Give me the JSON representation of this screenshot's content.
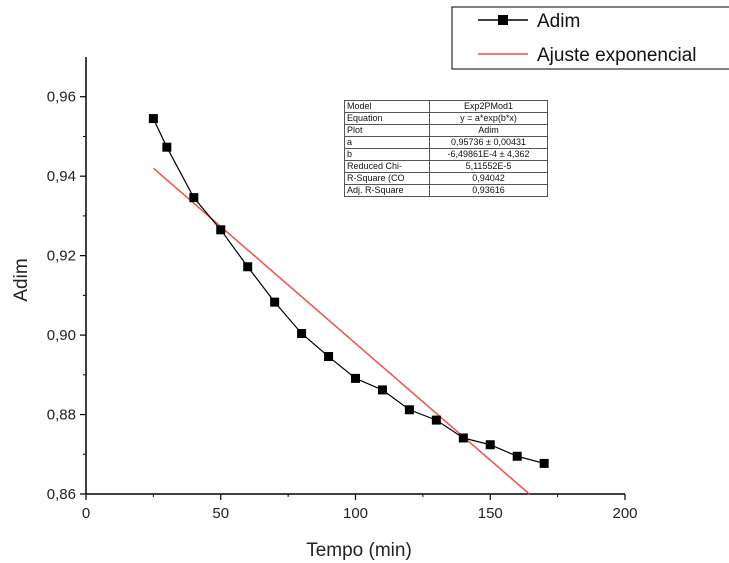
{
  "chart_data": {
    "type": "scatter",
    "xlabel": "Tempo (min)",
    "ylabel": "Adim",
    "xlim": [
      0,
      200
    ],
    "ylim": [
      0.86,
      0.97
    ],
    "x_ticks": [
      "0",
      "50",
      "100",
      "150",
      "200"
    ],
    "x_tick_values": [
      0,
      50,
      100,
      150,
      200
    ],
    "y_ticks": [
      "0,86",
      "0,88",
      "0,90",
      "0,92",
      "0,94",
      "0,96"
    ],
    "y_tick_values": [
      0.86,
      0.88,
      0.9,
      0.92,
      0.94,
      0.96
    ],
    "grid": false,
    "legend_position": "top-right",
    "series": [
      {
        "name": "Adim",
        "style": "line-with-square-markers",
        "color": "#000000",
        "x": [
          25,
          30,
          40,
          50,
          60,
          70,
          80,
          90,
          100,
          110,
          120,
          130,
          140,
          150,
          160,
          170
        ],
        "y": [
          0.9545,
          0.9473,
          0.9346,
          0.9265,
          0.9172,
          0.9083,
          0.9004,
          0.8946,
          0.8891,
          0.8862,
          0.8812,
          0.8786,
          0.8741,
          0.8724,
          0.8695,
          0.8677
        ]
      },
      {
        "name": "Ajuste exponencial",
        "style": "line",
        "color": "#f05050",
        "x": [
          25,
          164.5
        ],
        "y": [
          0.942,
          0.86
        ]
      }
    ],
    "fit_table": [
      {
        "key": "Model",
        "value": "Exp2PMod1"
      },
      {
        "key": "Equation",
        "value": "y = a*exp(b*x)"
      },
      {
        "key": "Plot",
        "value": "Adim"
      },
      {
        "key": "a",
        "value": "0,95736 ± 0,00431"
      },
      {
        "key": "b",
        "value": "-6,49861E-4 ± 4,362"
      },
      {
        "key": "Reduced Chi-",
        "value": "5,11552E-5"
      },
      {
        "key": "R-Square (CO",
        "value": "0,94042"
      },
      {
        "key": "Adj. R-Square",
        "value": "0,93616"
      }
    ]
  }
}
